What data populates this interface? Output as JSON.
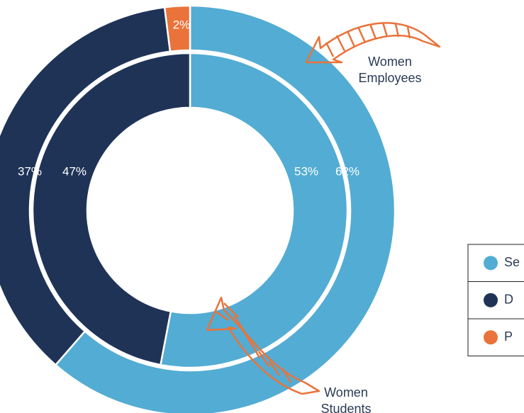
{
  "chart_data": {
    "type": "donut",
    "categories": [
      "Se",
      "D",
      "P"
    ],
    "colors": [
      "#53acd3",
      "#1f3357",
      "#e9733a"
    ],
    "series": [
      {
        "name": "Women Employees",
        "values": [
          62,
          37,
          2
        ],
        "value_labels": [
          "62%",
          "37%",
          "2%"
        ]
      },
      {
        "name": "Women Students",
        "values": [
          53,
          47,
          null
        ],
        "value_labels": [
          "53%",
          "47%",
          null
        ]
      }
    ]
  }
}
